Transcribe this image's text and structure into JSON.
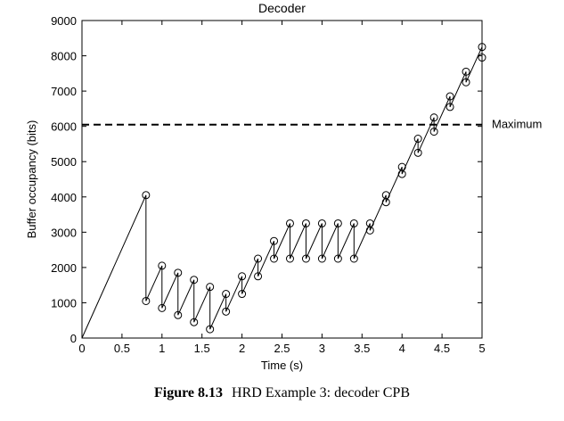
{
  "chart_data": {
    "type": "line",
    "title": "Decoder",
    "xlabel": "Time (s)",
    "ylabel": "Buffer occupancy (bits)",
    "xlim": [
      0,
      5
    ],
    "ylim": [
      0,
      9000
    ],
    "xticks": [
      0,
      0.5,
      1,
      1.5,
      2,
      2.5,
      3,
      3.5,
      4,
      4.5,
      5
    ],
    "xtick_labels": [
      "0",
      "0.5",
      "1",
      "1.5",
      "2",
      "2.5",
      "3",
      "3.5",
      "4",
      "4.5",
      "5"
    ],
    "yticks": [
      0,
      1000,
      2000,
      3000,
      4000,
      5000,
      6000,
      7000,
      8000,
      9000
    ],
    "ytick_labels": [
      "0",
      "1000",
      "2000",
      "3000",
      "4000",
      "5000",
      "6000",
      "7000",
      "8000",
      "9000"
    ],
    "grid": false,
    "series": [
      {
        "x": [
          0,
          0.8,
          0.8,
          1.0,
          1.0,
          1.2,
          1.2,
          1.4,
          1.4,
          1.6,
          1.6,
          1.8,
          1.8,
          2.0,
          2.0,
          2.2,
          2.2,
          2.4,
          2.4,
          2.6,
          2.6,
          2.8,
          2.8,
          3.0,
          3.0,
          3.2,
          3.2,
          3.4,
          3.4,
          3.6,
          3.6,
          3.8,
          3.8,
          4.0,
          4.0,
          4.2,
          4.2,
          4.4,
          4.4,
          4.6,
          4.6,
          4.8,
          4.8,
          5.0,
          5.0
        ],
        "y": [
          0,
          4050,
          1050,
          2050,
          850,
          1850,
          650,
          1650,
          450,
          1450,
          250,
          1250,
          750,
          1750,
          1250,
          2250,
          1750,
          2750,
          2250,
          3250,
          2250,
          3250,
          2250,
          3250,
          2250,
          3250,
          2250,
          3250,
          2250,
          3250,
          3050,
          4050,
          3850,
          4850,
          4650,
          5650,
          5250,
          6250,
          5850,
          6850,
          6550,
          7550,
          7250,
          8250,
          7950
        ]
      }
    ],
    "markers": {
      "x": [
        0.8,
        0.8,
        1.0,
        1.0,
        1.2,
        1.2,
        1.4,
        1.4,
        1.6,
        1.6,
        1.8,
        1.8,
        2.0,
        2.0,
        2.2,
        2.2,
        2.4,
        2.4,
        2.6,
        2.6,
        2.8,
        2.8,
        3.0,
        3.0,
        3.2,
        3.2,
        3.4,
        3.4,
        3.6,
        3.6,
        3.8,
        3.8,
        4.0,
        4.0,
        4.2,
        4.2,
        4.4,
        4.4,
        4.6,
        4.6,
        4.8,
        4.8,
        5.0,
        5.0
      ],
      "y": [
        4050,
        1050,
        2050,
        850,
        1850,
        650,
        1650,
        450,
        1450,
        250,
        1250,
        750,
        1750,
        1250,
        2250,
        1750,
        2750,
        2250,
        3250,
        2250,
        3250,
        2250,
        3250,
        2250,
        3250,
        2250,
        3250,
        2250,
        3250,
        3050,
        4050,
        3850,
        4850,
        4650,
        5650,
        5250,
        6250,
        5850,
        6850,
        6550,
        7550,
        7250,
        8250,
        7950
      ]
    },
    "maximum_line": {
      "y": 6050,
      "label": "Maximum"
    }
  },
  "caption": {
    "lead": "Figure 8.13",
    "text": "HRD Example 3: decoder CPB"
  }
}
